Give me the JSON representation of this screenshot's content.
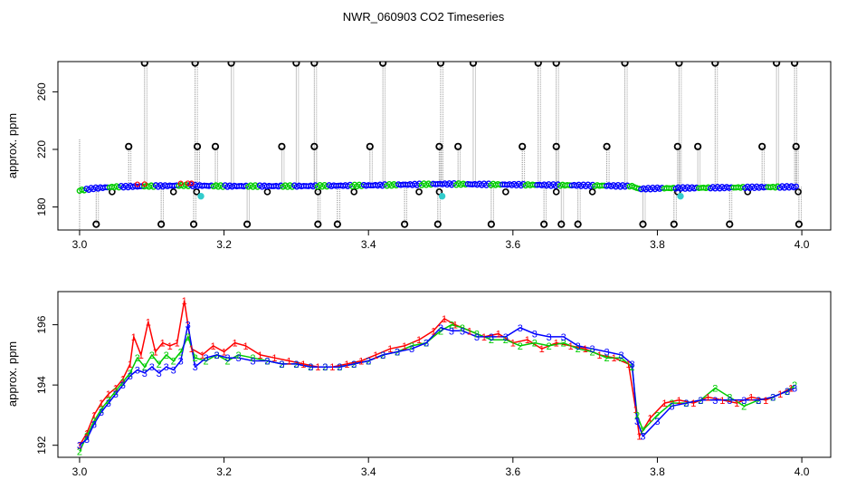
{
  "figure": {
    "title": "NWR_060903  CO2 Timeseries"
  },
  "chart_data": [
    {
      "type": "scatter",
      "name": "top-panel",
      "ylabel": "approx. ppm",
      "xlabel": "",
      "xlim": [
        2.97,
        4.04
      ],
      "ylim": [
        164,
        281
      ],
      "x_ticks": [
        3.0,
        3.2,
        3.4,
        3.6,
        3.8,
        4.0
      ],
      "x_tick_labels": [
        "3.0",
        "3.2",
        "3.4",
        "3.6",
        "3.8",
        "4.0"
      ],
      "y_ticks": [
        180,
        220,
        260
      ],
      "y_tick_labels": [
        "180",
        "220",
        "260"
      ],
      "grid": false,
      "baseline": [
        {
          "x": 3.0,
          "y": 191.5
        },
        {
          "x": 3.02,
          "y": 193
        },
        {
          "x": 3.05,
          "y": 194
        },
        {
          "x": 3.1,
          "y": 194.5
        },
        {
          "x": 3.15,
          "y": 195
        },
        {
          "x": 3.2,
          "y": 194.5
        },
        {
          "x": 3.3,
          "y": 194.5
        },
        {
          "x": 3.4,
          "y": 195
        },
        {
          "x": 3.5,
          "y": 196
        },
        {
          "x": 3.6,
          "y": 195.5
        },
        {
          "x": 3.7,
          "y": 195
        },
        {
          "x": 3.765,
          "y": 194.5
        },
        {
          "x": 3.775,
          "y": 192.5
        },
        {
          "x": 3.8,
          "y": 193
        },
        {
          "x": 3.9,
          "y": 193.5
        },
        {
          "x": 3.99,
          "y": 194
        }
      ],
      "spikes_high": [
        3.09,
        3.16,
        3.21,
        3.3,
        3.325,
        3.42,
        3.5,
        3.545,
        3.635,
        3.66,
        3.755,
        3.83,
        3.88,
        3.965,
        3.99
      ],
      "spikes_mid": [
        3.068,
        3.163,
        3.188,
        3.28,
        3.325,
        3.402,
        3.498,
        3.524,
        3.613,
        3.66,
        3.73,
        3.828,
        3.856,
        3.945,
        3.992
      ],
      "spikes_low": [
        3.023,
        3.113,
        3.158,
        3.232,
        3.33,
        3.357,
        3.45,
        3.496,
        3.57,
        3.643,
        3.667,
        3.69,
        3.78,
        3.823,
        3.9,
        3.996
      ],
      "outliers_small": [
        3.045,
        3.13,
        3.162,
        3.26,
        3.33,
        3.38,
        3.47,
        3.498,
        3.59,
        3.66,
        3.71,
        3.828,
        3.925,
        3.995
      ],
      "cyan_points": [
        {
          "x": 3.168,
          "y": 187.5
        },
        {
          "x": 3.502,
          "y": 187.5
        },
        {
          "x": 3.832,
          "y": 187.5
        }
      ],
      "colors": {
        "main": "#0000ff",
        "alt": "#00cc00",
        "red": "#ff0000",
        "cyan": "#33cccc",
        "outlier": "#000000",
        "connector": "#888888"
      }
    },
    {
      "type": "line",
      "name": "bottom-panel",
      "ylabel": "approx. ppm",
      "xlabel": "",
      "xlim": [
        2.97,
        4.04
      ],
      "ylim": [
        191.6,
        197.1
      ],
      "x_ticks": [
        3.0,
        3.2,
        3.4,
        3.6,
        3.8,
        4.0
      ],
      "x_tick_labels": [
        "3.0",
        "3.2",
        "3.4",
        "3.6",
        "3.8",
        "4.0"
      ],
      "y_ticks": [
        192,
        194,
        196
      ],
      "y_tick_labels": [
        "192",
        "194",
        "196"
      ],
      "grid": false,
      "series": [
        {
          "marker": "1",
          "color": "#ff0000",
          "points": [
            [
              3.0,
              192.0
            ],
            [
              3.01,
              192.4
            ],
            [
              3.02,
              193.0
            ],
            [
              3.03,
              193.4
            ],
            [
              3.04,
              193.7
            ],
            [
              3.05,
              193.9
            ],
            [
              3.06,
              194.2
            ],
            [
              3.07,
              194.7
            ],
            [
              3.075,
              195.6
            ],
            [
              3.085,
              195.0
            ],
            [
              3.095,
              196.1
            ],
            [
              3.105,
              195.1
            ],
            [
              3.115,
              195.4
            ],
            [
              3.125,
              195.3
            ],
            [
              3.135,
              195.4
            ],
            [
              3.145,
              196.8
            ],
            [
              3.155,
              195.2
            ],
            [
              3.17,
              195.0
            ],
            [
              3.185,
              195.3
            ],
            [
              3.2,
              195.1
            ],
            [
              3.215,
              195.4
            ],
            [
              3.23,
              195.3
            ],
            [
              3.25,
              195.0
            ],
            [
              3.27,
              194.9
            ],
            [
              3.29,
              194.8
            ],
            [
              3.31,
              194.7
            ],
            [
              3.33,
              194.6
            ],
            [
              3.35,
              194.6
            ],
            [
              3.37,
              194.7
            ],
            [
              3.39,
              194.8
            ],
            [
              3.41,
              195.0
            ],
            [
              3.43,
              195.2
            ],
            [
              3.45,
              195.3
            ],
            [
              3.47,
              195.5
            ],
            [
              3.49,
              195.8
            ],
            [
              3.505,
              196.2
            ],
            [
              3.52,
              196.0
            ],
            [
              3.54,
              195.8
            ],
            [
              3.56,
              195.6
            ],
            [
              3.58,
              195.7
            ],
            [
              3.6,
              195.4
            ],
            [
              3.62,
              195.5
            ],
            [
              3.64,
              195.2
            ],
            [
              3.66,
              195.4
            ],
            [
              3.68,
              195.3
            ],
            [
              3.7,
              195.2
            ],
            [
              3.72,
              195.0
            ],
            [
              3.74,
              194.9
            ],
            [
              3.76,
              194.7
            ],
            [
              3.77,
              193.2
            ],
            [
              3.775,
              192.3
            ],
            [
              3.79,
              192.9
            ],
            [
              3.81,
              193.4
            ],
            [
              3.83,
              193.5
            ],
            [
              3.85,
              193.4
            ],
            [
              3.87,
              193.6
            ],
            [
              3.89,
              193.5
            ],
            [
              3.91,
              193.4
            ],
            [
              3.93,
              193.6
            ],
            [
              3.95,
              193.5
            ],
            [
              3.97,
              193.7
            ],
            [
              3.985,
              193.9
            ]
          ]
        },
        {
          "marker": "2",
          "color": "#00cc00",
          "points": [
            [
              3.0,
              191.8
            ],
            [
              3.01,
              192.3
            ],
            [
              3.02,
              192.8
            ],
            [
              3.03,
              193.2
            ],
            [
              3.04,
              193.5
            ],
            [
              3.05,
              193.8
            ],
            [
              3.06,
              194.1
            ],
            [
              3.07,
              194.4
            ],
            [
              3.08,
              194.9
            ],
            [
              3.09,
              194.6
            ],
            [
              3.1,
              195.0
            ],
            [
              3.11,
              194.7
            ],
            [
              3.12,
              195.0
            ],
            [
              3.13,
              194.8
            ],
            [
              3.14,
              195.1
            ],
            [
              3.15,
              195.6
            ],
            [
              3.16,
              194.9
            ],
            [
              3.175,
              194.8
            ],
            [
              3.19,
              195.0
            ],
            [
              3.205,
              194.8
            ],
            [
              3.22,
              195.0
            ],
            [
              3.24,
              194.9
            ],
            [
              3.26,
              194.8
            ],
            [
              3.28,
              194.7
            ],
            [
              3.3,
              194.7
            ],
            [
              3.32,
              194.6
            ],
            [
              3.34,
              194.6
            ],
            [
              3.36,
              194.6
            ],
            [
              3.38,
              194.7
            ],
            [
              3.4,
              194.8
            ],
            [
              3.42,
              195.0
            ],
            [
              3.44,
              195.1
            ],
            [
              3.46,
              195.3
            ],
            [
              3.48,
              195.4
            ],
            [
              3.5,
              195.8
            ],
            [
              3.515,
              196.0
            ],
            [
              3.53,
              195.9
            ],
            [
              3.55,
              195.7
            ],
            [
              3.57,
              195.5
            ],
            [
              3.59,
              195.5
            ],
            [
              3.61,
              195.3
            ],
            [
              3.63,
              195.4
            ],
            [
              3.65,
              195.3
            ],
            [
              3.67,
              195.4
            ],
            [
              3.69,
              195.2
            ],
            [
              3.71,
              195.1
            ],
            [
              3.73,
              194.9
            ],
            [
              3.75,
              194.9
            ],
            [
              3.765,
              194.6
            ],
            [
              3.772,
              193.0
            ],
            [
              3.78,
              192.5
            ],
            [
              3.8,
              193.0
            ],
            [
              3.82,
              193.4
            ],
            [
              3.84,
              193.4
            ],
            [
              3.86,
              193.5
            ],
            [
              3.88,
              193.9
            ],
            [
              3.9,
              193.6
            ],
            [
              3.92,
              193.3
            ],
            [
              3.94,
              193.5
            ],
            [
              3.96,
              193.6
            ],
            [
              3.98,
              193.8
            ],
            [
              3.99,
              194.0
            ]
          ]
        },
        {
          "marker": "3",
          "color": "#0000ff",
          "points": [
            [
              3.0,
              192.0
            ],
            [
              3.01,
              192.2
            ],
            [
              3.02,
              192.7
            ],
            [
              3.03,
              193.1
            ],
            [
              3.04,
              193.4
            ],
            [
              3.05,
              193.7
            ],
            [
              3.06,
              194.0
            ],
            [
              3.07,
              194.3
            ],
            [
              3.08,
              194.5
            ],
            [
              3.09,
              194.4
            ],
            [
              3.1,
              194.6
            ],
            [
              3.11,
              194.4
            ],
            [
              3.12,
              194.6
            ],
            [
              3.13,
              194.5
            ],
            [
              3.14,
              194.8
            ],
            [
              3.15,
              196.0
            ],
            [
              3.16,
              194.6
            ],
            [
              3.175,
              194.9
            ],
            [
              3.19,
              195.0
            ],
            [
              3.205,
              194.9
            ],
            [
              3.22,
              194.9
            ],
            [
              3.24,
              194.8
            ],
            [
              3.26,
              194.8
            ],
            [
              3.28,
              194.7
            ],
            [
              3.3,
              194.7
            ],
            [
              3.32,
              194.6
            ],
            [
              3.34,
              194.6
            ],
            [
              3.36,
              194.6
            ],
            [
              3.38,
              194.7
            ],
            [
              3.4,
              194.8
            ],
            [
              3.42,
              195.0
            ],
            [
              3.44,
              195.1
            ],
            [
              3.46,
              195.2
            ],
            [
              3.48,
              195.4
            ],
            [
              3.5,
              195.9
            ],
            [
              3.515,
              195.8
            ],
            [
              3.53,
              195.8
            ],
            [
              3.55,
              195.6
            ],
            [
              3.57,
              195.6
            ],
            [
              3.59,
              195.6
            ],
            [
              3.61,
              195.9
            ],
            [
              3.63,
              195.7
            ],
            [
              3.65,
              195.6
            ],
            [
              3.67,
              195.6
            ],
            [
              3.69,
              195.3
            ],
            [
              3.71,
              195.2
            ],
            [
              3.73,
              195.1
            ],
            [
              3.75,
              195.0
            ],
            [
              3.765,
              194.7
            ],
            [
              3.772,
              192.8
            ],
            [
              3.78,
              192.3
            ],
            [
              3.8,
              192.8
            ],
            [
              3.82,
              193.3
            ],
            [
              3.84,
              193.4
            ],
            [
              3.86,
              193.5
            ],
            [
              3.88,
              193.5
            ],
            [
              3.9,
              193.5
            ],
            [
              3.92,
              193.5
            ],
            [
              3.94,
              193.5
            ],
            [
              3.96,
              193.6
            ],
            [
              3.98,
              193.8
            ],
            [
              3.99,
              193.9
            ]
          ]
        }
      ]
    }
  ]
}
